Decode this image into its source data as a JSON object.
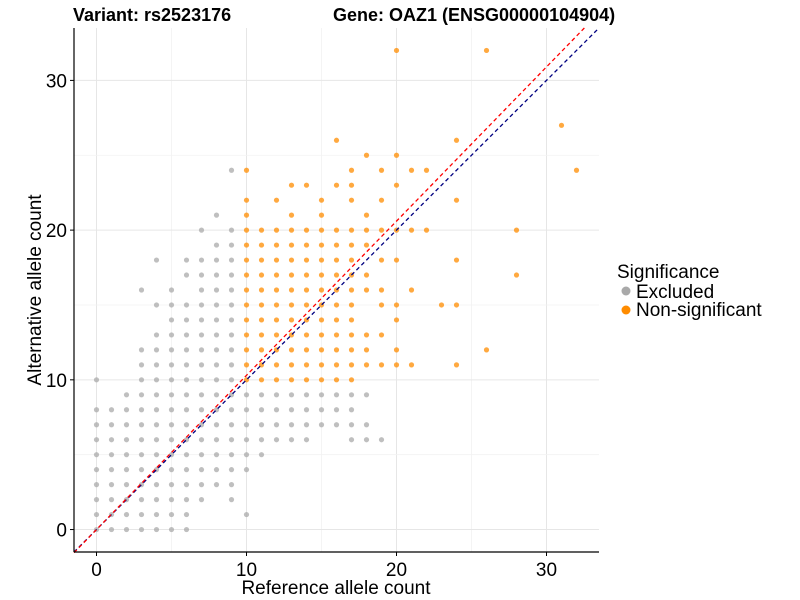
{
  "chart_data": {
    "type": "scatter",
    "title_left": "Variant: rs2523176",
    "title_right": "Gene: OAZ1 (ENSG00000104904)",
    "xlabel": "Reference allele count",
    "ylabel": "Alternative allele count",
    "xlim": [
      -1.5,
      33.5
    ],
    "ylim": [
      -1.5,
      33.5
    ],
    "xticks": [
      0,
      10,
      20,
      30
    ],
    "yticks": [
      0,
      10,
      20,
      30
    ],
    "grid": true,
    "legend": {
      "title": "Significance",
      "position": "right",
      "entries": [
        {
          "label": "Excluded",
          "color": "#a9a9a9"
        },
        {
          "label": "Non-significant",
          "color": "#ff8c00"
        }
      ]
    },
    "reference_lines": [
      {
        "slope": 1.0,
        "intercept": 0,
        "color": "#000080",
        "style": "dashed"
      },
      {
        "slope": 1.03,
        "intercept": 0,
        "color": "#ff0000",
        "style": "dashed"
      }
    ],
    "series": [
      {
        "name": "Excluded",
        "color": "#a9a9a9",
        "points": [
          [
            0,
            0
          ],
          [
            0,
            1
          ],
          [
            0,
            2
          ],
          [
            0,
            3
          ],
          [
            0,
            4
          ],
          [
            0,
            5
          ],
          [
            0,
            6
          ],
          [
            0,
            7
          ],
          [
            0,
            8
          ],
          [
            0,
            10
          ],
          [
            1,
            0
          ],
          [
            1,
            1
          ],
          [
            1,
            2
          ],
          [
            1,
            3
          ],
          [
            1,
            4
          ],
          [
            1,
            5
          ],
          [
            1,
            6
          ],
          [
            1,
            7
          ],
          [
            1,
            8
          ],
          [
            2,
            0
          ],
          [
            2,
            1
          ],
          [
            2,
            2
          ],
          [
            2,
            3
          ],
          [
            2,
            4
          ],
          [
            2,
            5
          ],
          [
            2,
            6
          ],
          [
            2,
            7
          ],
          [
            2,
            8
          ],
          [
            2,
            9
          ],
          [
            3,
            0
          ],
          [
            3,
            1
          ],
          [
            3,
            2
          ],
          [
            3,
            3
          ],
          [
            3,
            4
          ],
          [
            3,
            5
          ],
          [
            3,
            6
          ],
          [
            3,
            7
          ],
          [
            3,
            8
          ],
          [
            3,
            9
          ],
          [
            3,
            10
          ],
          [
            3,
            11
          ],
          [
            3,
            12
          ],
          [
            3,
            16
          ],
          [
            4,
            0
          ],
          [
            4,
            1
          ],
          [
            4,
            2
          ],
          [
            4,
            3
          ],
          [
            4,
            4
          ],
          [
            4,
            5
          ],
          [
            4,
            6
          ],
          [
            4,
            7
          ],
          [
            4,
            8
          ],
          [
            4,
            9
          ],
          [
            4,
            10
          ],
          [
            4,
            11
          ],
          [
            4,
            12
          ],
          [
            4,
            13
          ],
          [
            4,
            15
          ],
          [
            4,
            18
          ],
          [
            5,
            0
          ],
          [
            5,
            1
          ],
          [
            5,
            2
          ],
          [
            5,
            3
          ],
          [
            5,
            4
          ],
          [
            5,
            5
          ],
          [
            5,
            6
          ],
          [
            5,
            7
          ],
          [
            5,
            8
          ],
          [
            5,
            9
          ],
          [
            5,
            10
          ],
          [
            5,
            11
          ],
          [
            5,
            12
          ],
          [
            5,
            13
          ],
          [
            5,
            14
          ],
          [
            5,
            15
          ],
          [
            5,
            16
          ],
          [
            6,
            0
          ],
          [
            6,
            1
          ],
          [
            6,
            2
          ],
          [
            6,
            3
          ],
          [
            6,
            4
          ],
          [
            6,
            5
          ],
          [
            6,
            6
          ],
          [
            6,
            7
          ],
          [
            6,
            8
          ],
          [
            6,
            9
          ],
          [
            6,
            10
          ],
          [
            6,
            11
          ],
          [
            6,
            12
          ],
          [
            6,
            13
          ],
          [
            6,
            14
          ],
          [
            6,
            15
          ],
          [
            6,
            17
          ],
          [
            6,
            18
          ],
          [
            7,
            2
          ],
          [
            7,
            3
          ],
          [
            7,
            4
          ],
          [
            7,
            5
          ],
          [
            7,
            6
          ],
          [
            7,
            7
          ],
          [
            7,
            8
          ],
          [
            7,
            9
          ],
          [
            7,
            10
          ],
          [
            7,
            11
          ],
          [
            7,
            12
          ],
          [
            7,
            13
          ],
          [
            7,
            14
          ],
          [
            7,
            15
          ],
          [
            7,
            16
          ],
          [
            7,
            17
          ],
          [
            7,
            18
          ],
          [
            7,
            20
          ],
          [
            8,
            3
          ],
          [
            8,
            4
          ],
          [
            8,
            5
          ],
          [
            8,
            6
          ],
          [
            8,
            7
          ],
          [
            8,
            8
          ],
          [
            8,
            9
          ],
          [
            8,
            10
          ],
          [
            8,
            11
          ],
          [
            8,
            12
          ],
          [
            8,
            13
          ],
          [
            8,
            14
          ],
          [
            8,
            15
          ],
          [
            8,
            16
          ],
          [
            8,
            17
          ],
          [
            8,
            18
          ],
          [
            8,
            19
          ],
          [
            8,
            21
          ],
          [
            9,
            2
          ],
          [
            9,
            3
          ],
          [
            9,
            4
          ],
          [
            9,
            5
          ],
          [
            9,
            6
          ],
          [
            9,
            7
          ],
          [
            9,
            8
          ],
          [
            9,
            9
          ],
          [
            9,
            10
          ],
          [
            9,
            11
          ],
          [
            9,
            12
          ],
          [
            9,
            13
          ],
          [
            9,
            14
          ],
          [
            9,
            15
          ],
          [
            9,
            16
          ],
          [
            9,
            17
          ],
          [
            9,
            18
          ],
          [
            9,
            19
          ],
          [
            9,
            20
          ],
          [
            9,
            24
          ],
          [
            10,
            1
          ],
          [
            10,
            4
          ],
          [
            10,
            5
          ],
          [
            10,
            6
          ],
          [
            10,
            7
          ],
          [
            10,
            8
          ],
          [
            10,
            9
          ],
          [
            11,
            5
          ],
          [
            11,
            6
          ],
          [
            11,
            7
          ],
          [
            11,
            8
          ],
          [
            11,
            9
          ],
          [
            12,
            6
          ],
          [
            12,
            7
          ],
          [
            12,
            8
          ],
          [
            12,
            9
          ],
          [
            13,
            6
          ],
          [
            13,
            7
          ],
          [
            13,
            8
          ],
          [
            13,
            9
          ],
          [
            14,
            6
          ],
          [
            14,
            7
          ],
          [
            14,
            8
          ],
          [
            14,
            9
          ],
          [
            15,
            7
          ],
          [
            15,
            8
          ],
          [
            15,
            9
          ],
          [
            16,
            7
          ],
          [
            16,
            8
          ],
          [
            16,
            9
          ],
          [
            17,
            6
          ],
          [
            17,
            7
          ],
          [
            17,
            8
          ],
          [
            17,
            9
          ],
          [
            18,
            6
          ],
          [
            18,
            7
          ],
          [
            18,
            9
          ],
          [
            19,
            6
          ]
        ]
      },
      {
        "name": "Non-significant",
        "color": "#ff8c00",
        "points": [
          [
            10,
            10
          ],
          [
            10,
            11
          ],
          [
            10,
            12
          ],
          [
            10,
            13
          ],
          [
            10,
            14
          ],
          [
            10,
            15
          ],
          [
            10,
            16
          ],
          [
            10,
            17
          ],
          [
            10,
            18
          ],
          [
            10,
            19
          ],
          [
            10,
            20
          ],
          [
            10,
            21
          ],
          [
            10,
            22
          ],
          [
            10,
            24
          ],
          [
            11,
            10
          ],
          [
            11,
            11
          ],
          [
            11,
            12
          ],
          [
            11,
            13
          ],
          [
            11,
            14
          ],
          [
            11,
            15
          ],
          [
            11,
            16
          ],
          [
            11,
            17
          ],
          [
            11,
            18
          ],
          [
            11,
            19
          ],
          [
            11,
            20
          ],
          [
            12,
            10
          ],
          [
            12,
            11
          ],
          [
            12,
            12
          ],
          [
            12,
            13
          ],
          [
            12,
            14
          ],
          [
            12,
            15
          ],
          [
            12,
            16
          ],
          [
            12,
            17
          ],
          [
            12,
            18
          ],
          [
            12,
            19
          ],
          [
            12,
            20
          ],
          [
            12,
            22
          ],
          [
            13,
            10
          ],
          [
            13,
            11
          ],
          [
            13,
            12
          ],
          [
            13,
            13
          ],
          [
            13,
            14
          ],
          [
            13,
            15
          ],
          [
            13,
            16
          ],
          [
            13,
            17
          ],
          [
            13,
            18
          ],
          [
            13,
            19
          ],
          [
            13,
            20
          ],
          [
            13,
            21
          ],
          [
            13,
            23
          ],
          [
            14,
            10
          ],
          [
            14,
            11
          ],
          [
            14,
            12
          ],
          [
            14,
            13
          ],
          [
            14,
            14
          ],
          [
            14,
            15
          ],
          [
            14,
            16
          ],
          [
            14,
            17
          ],
          [
            14,
            18
          ],
          [
            14,
            19
          ],
          [
            14,
            20
          ],
          [
            14,
            23
          ],
          [
            15,
            10
          ],
          [
            15,
            11
          ],
          [
            15,
            12
          ],
          [
            15,
            13
          ],
          [
            15,
            14
          ],
          [
            15,
            15
          ],
          [
            15,
            16
          ],
          [
            15,
            17
          ],
          [
            15,
            18
          ],
          [
            15,
            19
          ],
          [
            15,
            20
          ],
          [
            15,
            21
          ],
          [
            15,
            22
          ],
          [
            16,
            10
          ],
          [
            16,
            11
          ],
          [
            16,
            12
          ],
          [
            16,
            13
          ],
          [
            16,
            14
          ],
          [
            16,
            15
          ],
          [
            16,
            16
          ],
          [
            16,
            17
          ],
          [
            16,
            18
          ],
          [
            16,
            19
          ],
          [
            16,
            20
          ],
          [
            16,
            23
          ],
          [
            16,
            26
          ],
          [
            17,
            10
          ],
          [
            17,
            11
          ],
          [
            17,
            12
          ],
          [
            17,
            13
          ],
          [
            17,
            14
          ],
          [
            17,
            15
          ],
          [
            17,
            16
          ],
          [
            17,
            17
          ],
          [
            17,
            18
          ],
          [
            17,
            19
          ],
          [
            17,
            20
          ],
          [
            17,
            22
          ],
          [
            17,
            23
          ],
          [
            17,
            24
          ],
          [
            18,
            11
          ],
          [
            18,
            12
          ],
          [
            18,
            13
          ],
          [
            18,
            16
          ],
          [
            18,
            17
          ],
          [
            18,
            19
          ],
          [
            18,
            20
          ],
          [
            18,
            21
          ],
          [
            18,
            25
          ],
          [
            19,
            11
          ],
          [
            19,
            13
          ],
          [
            19,
            15
          ],
          [
            19,
            16
          ],
          [
            19,
            18
          ],
          [
            19,
            20
          ],
          [
            19,
            22
          ],
          [
            19,
            24
          ],
          [
            20,
            11
          ],
          [
            20,
            12
          ],
          [
            20,
            14
          ],
          [
            20,
            15
          ],
          [
            20,
            18
          ],
          [
            20,
            20
          ],
          [
            20,
            23
          ],
          [
            20,
            25
          ],
          [
            20,
            32
          ],
          [
            21,
            11
          ],
          [
            21,
            16
          ],
          [
            21,
            20
          ],
          [
            21,
            24
          ],
          [
            22,
            20
          ],
          [
            22,
            24
          ],
          [
            23,
            15
          ],
          [
            24,
            11
          ],
          [
            24,
            15
          ],
          [
            24,
            18
          ],
          [
            24,
            22
          ],
          [
            24,
            26
          ],
          [
            26,
            12
          ],
          [
            26,
            32
          ],
          [
            28,
            17
          ],
          [
            28,
            20
          ],
          [
            31,
            27
          ],
          [
            32,
            24
          ]
        ]
      }
    ]
  }
}
